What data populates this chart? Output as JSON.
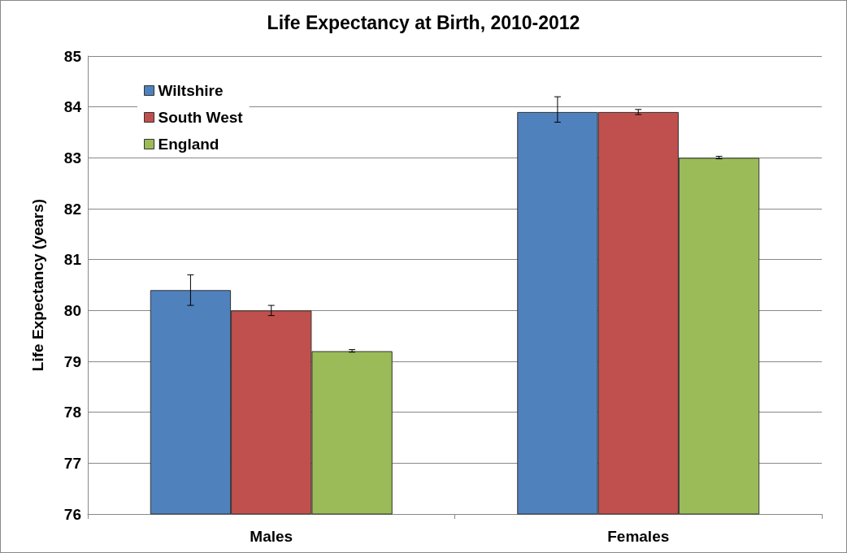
{
  "chart_data": {
    "type": "bar",
    "title": "Life Expectancy at Birth, 2010-2012",
    "ylabel": "Life Expectancy (years)",
    "categories": [
      "Males",
      "Females"
    ],
    "series": [
      {
        "name": "Wiltshire",
        "color": "#4f81bd",
        "values": [
          80.4,
          83.9
        ],
        "errors": [
          [
            80.1,
            80.7
          ],
          [
            83.7,
            84.2
          ]
        ]
      },
      {
        "name": "South West",
        "color": "#c0504d",
        "values": [
          80.0,
          83.9
        ],
        "errors": [
          [
            79.9,
            80.1
          ],
          [
            83.85,
            83.95
          ]
        ]
      },
      {
        "name": "England",
        "color": "#9bbb59",
        "values": [
          79.2,
          83.0
        ],
        "errors": [
          [
            79.18,
            79.23
          ],
          [
            82.98,
            83.03
          ]
        ]
      }
    ],
    "ylim": [
      76,
      85
    ],
    "yticks": [
      76,
      77,
      78,
      79,
      80,
      81,
      82,
      83,
      84,
      85
    ],
    "grid": "y",
    "legend": "top left"
  }
}
